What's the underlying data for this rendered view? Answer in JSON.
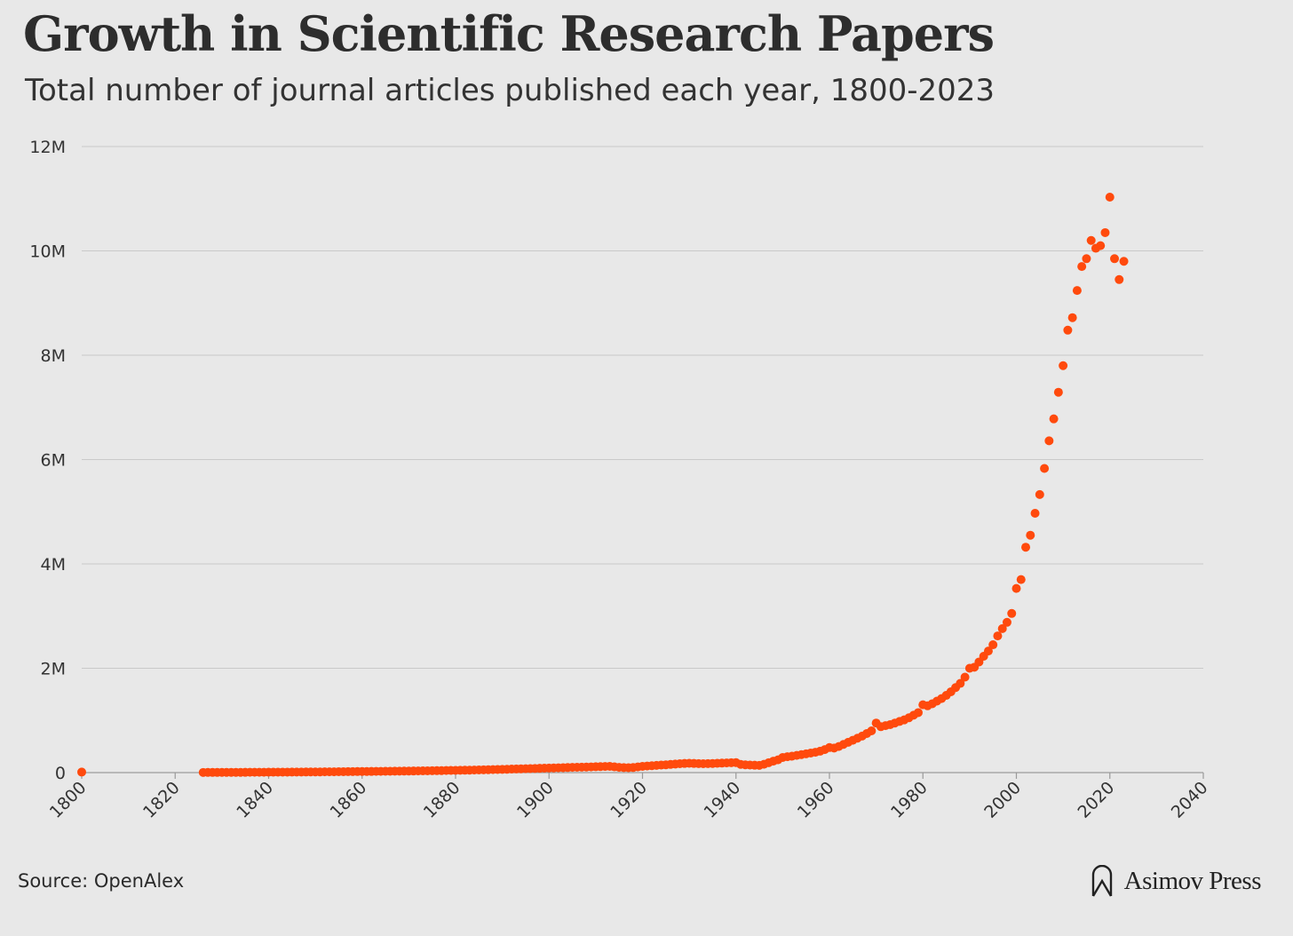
{
  "title": "Growth in Scientific Research Papers",
  "subtitle": "Total number of journal articles published each year, 1800-2023",
  "source": "Source: OpenAlex",
  "brand": "Asimov Press",
  "colors": {
    "background": "#e8e8e8",
    "points": "#ff4a0d",
    "grid": "#c9c9c9",
    "axis": "#9a9a9a",
    "text": "#2d2d2d"
  },
  "chart_data": {
    "type": "scatter",
    "title": "Growth in Scientific Research Papers",
    "subtitle": "Total number of journal articles published each year, 1800-2023",
    "xlabel": "",
    "ylabel": "",
    "xlim": [
      1800,
      2040
    ],
    "ylim": [
      0,
      12000000
    ],
    "x_ticks": [
      {
        "value": 1800,
        "label": "1800"
      },
      {
        "value": 1820,
        "label": "1820"
      },
      {
        "value": 1840,
        "label": "1840"
      },
      {
        "value": 1860,
        "label": "1860"
      },
      {
        "value": 1880,
        "label": "1880"
      },
      {
        "value": 1900,
        "label": "1900"
      },
      {
        "value": 1920,
        "label": "1920"
      },
      {
        "value": 1940,
        "label": "1940"
      },
      {
        "value": 1960,
        "label": "1960"
      },
      {
        "value": 1980,
        "label": "1980"
      },
      {
        "value": 2000,
        "label": "2000"
      },
      {
        "value": 2020,
        "label": "2020"
      },
      {
        "value": 2040,
        "label": "2040"
      }
    ],
    "y_ticks": [
      {
        "value": 0,
        "label": "0"
      },
      {
        "value": 2000000,
        "label": "2M"
      },
      {
        "value": 4000000,
        "label": "4M"
      },
      {
        "value": 6000000,
        "label": "6M"
      },
      {
        "value": 8000000,
        "label": "8M"
      },
      {
        "value": 10000000,
        "label": "10M"
      },
      {
        "value": 12000000,
        "label": "12M"
      }
    ],
    "grid": "horizontal",
    "legend": "none",
    "series": [
      {
        "name": "Journal articles",
        "x": [
          1800,
          1826,
          1827,
          1828,
          1829,
          1830,
          1831,
          1832,
          1833,
          1834,
          1835,
          1836,
          1837,
          1838,
          1839,
          1840,
          1841,
          1842,
          1843,
          1844,
          1845,
          1846,
          1847,
          1848,
          1849,
          1850,
          1851,
          1852,
          1853,
          1854,
          1855,
          1856,
          1857,
          1858,
          1859,
          1860,
          1861,
          1862,
          1863,
          1864,
          1865,
          1866,
          1867,
          1868,
          1869,
          1870,
          1871,
          1872,
          1873,
          1874,
          1875,
          1876,
          1877,
          1878,
          1879,
          1880,
          1881,
          1882,
          1883,
          1884,
          1885,
          1886,
          1887,
          1888,
          1889,
          1890,
          1891,
          1892,
          1893,
          1894,
          1895,
          1896,
          1897,
          1898,
          1899,
          1900,
          1901,
          1902,
          1903,
          1904,
          1905,
          1906,
          1907,
          1908,
          1909,
          1910,
          1911,
          1912,
          1913,
          1914,
          1915,
          1916,
          1917,
          1918,
          1919,
          1920,
          1921,
          1922,
          1923,
          1924,
          1925,
          1926,
          1927,
          1928,
          1929,
          1930,
          1931,
          1932,
          1933,
          1934,
          1935,
          1936,
          1937,
          1938,
          1939,
          1940,
          1941,
          1942,
          1943,
          1944,
          1945,
          1946,
          1947,
          1948,
          1949,
          1950,
          1951,
          1952,
          1953,
          1954,
          1955,
          1956,
          1957,
          1958,
          1959,
          1960,
          1961,
          1962,
          1963,
          1964,
          1965,
          1966,
          1967,
          1968,
          1969,
          1970,
          1971,
          1972,
          1973,
          1974,
          1975,
          1976,
          1977,
          1978,
          1979,
          1980,
          1981,
          1982,
          1983,
          1984,
          1985,
          1986,
          1987,
          1988,
          1989,
          1990,
          1991,
          1992,
          1993,
          1994,
          1995,
          1996,
          1997,
          1998,
          1999,
          2000,
          2001,
          2002,
          2003,
          2004,
          2005,
          2006,
          2007,
          2008,
          2009,
          2010,
          2011,
          2012,
          2013,
          2014,
          2015,
          2016,
          2017,
          2018,
          2019,
          2020,
          2021,
          2022,
          2023
        ],
        "values": [
          10000,
          3000,
          3300,
          3500,
          3800,
          4000,
          4300,
          4600,
          4900,
          5200,
          5500,
          5900,
          6300,
          6700,
          7100,
          7500,
          8000,
          8500,
          9000,
          9500,
          10000,
          10600,
          11200,
          11800,
          12400,
          13000,
          13700,
          14400,
          15100,
          15900,
          16700,
          17500,
          18400,
          19300,
          20200,
          21000,
          21800,
          22600,
          23500,
          24400,
          25300,
          26200,
          27200,
          28200,
          29200,
          30200,
          31300,
          32400,
          33500,
          34700,
          36000,
          37300,
          38700,
          40100,
          41500,
          43000,
          44600,
          46200,
          47900,
          49600,
          51500,
          53500,
          55500,
          57500,
          59500,
          62000,
          64500,
          67000,
          69500,
          72000,
          74500,
          77000,
          79500,
          82000,
          84500,
          87000,
          89500,
          92000,
          94500,
          97000,
          99500,
          102000,
          104500,
          107000,
          109500,
          112000,
          114500,
          117000,
          119000,
          110000,
          100000,
          96000,
          94000,
          97000,
          108000,
          120000,
          126000,
          132000,
          138000,
          144000,
          150000,
          157000,
          164000,
          171000,
          176000,
          178000,
          176000,
          172000,
          170000,
          172000,
          175000,
          178000,
          182000,
          186000,
          190000,
          192000,
          158000,
          150000,
          145000,
          142000,
          138000,
          160000,
          190000,
          220000,
          245000,
          290000,
          305000,
          315000,
          330000,
          345000,
          360000,
          375000,
          390000,
          410000,
          440000,
          480000,
          470000,
          500000,
          540000,
          580000,
          620000,
          660000,
          700000,
          750000,
          800000,
          950000,
          880000,
          900000,
          920000,
          950000,
          980000,
          1010000,
          1050000,
          1100000,
          1150000,
          1300000,
          1280000,
          1320000,
          1370000,
          1420000,
          1480000,
          1550000,
          1630000,
          1710000,
          1830000,
          2000000,
          2020000,
          2120000,
          2230000,
          2330000,
          2450000,
          2620000,
          2760000,
          2880000,
          3050000,
          3530000,
          3700000,
          4320000,
          4550000,
          4970000,
          5330000,
          5830000,
          6360000,
          6780000,
          7290000,
          7800000,
          8480000,
          8720000,
          9240000,
          9700000,
          9850000,
          10200000,
          10050000,
          10100000,
          10350000,
          11030000,
          9850000,
          9450000,
          9800000
        ]
      }
    ]
  }
}
